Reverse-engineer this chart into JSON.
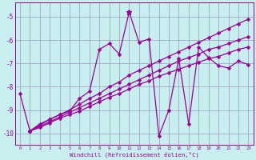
{
  "xlabel": "Windchill (Refroidissement éolien,°C)",
  "bg_color": "#c8eef0",
  "line_color": "#990099",
  "grid_color": "#9999bb",
  "series_main": {
    "x": [
      0,
      1,
      2,
      3,
      4,
      5,
      6,
      7,
      8,
      9,
      10,
      11,
      12,
      13,
      14,
      15,
      16,
      17,
      18,
      19,
      20,
      21,
      22,
      23
    ],
    "y": [
      -8.3,
      -9.9,
      -9.6,
      -9.4,
      -9.2,
      -9.05,
      -8.5,
      -8.2,
      -6.4,
      -6.15,
      -6.6,
      -4.8,
      -6.1,
      -5.95,
      -10.1,
      -9.0,
      -6.8,
      -9.6,
      -6.3,
      -6.75,
      -7.1,
      -7.2,
      -6.9,
      -7.05
    ]
  },
  "series_a": {
    "x": [
      1,
      2,
      3,
      4,
      5,
      6,
      7,
      8,
      9,
      10,
      11,
      12,
      13,
      14,
      15,
      16,
      17,
      18,
      19,
      20,
      21,
      22,
      23
    ],
    "y": [
      -9.9,
      -9.65,
      -9.4,
      -9.2,
      -9.0,
      -8.75,
      -8.5,
      -8.3,
      -8.0,
      -7.8,
      -7.5,
      -7.3,
      -7.1,
      -6.9,
      -6.7,
      -6.5,
      -6.3,
      -6.1,
      -5.9,
      -5.7,
      -5.5,
      -5.3,
      -5.1
    ]
  },
  "series_b": {
    "x": [
      1,
      2,
      3,
      4,
      5,
      6,
      7,
      8,
      9,
      10,
      11,
      12,
      13,
      14,
      15,
      16,
      17,
      18,
      19,
      20,
      21,
      22,
      23
    ],
    "y": [
      -9.9,
      -9.7,
      -9.5,
      -9.3,
      -9.1,
      -8.9,
      -8.7,
      -8.5,
      -8.3,
      -8.1,
      -7.9,
      -7.7,
      -7.5,
      -7.3,
      -7.1,
      -6.9,
      -6.75,
      -6.6,
      -6.4,
      -6.3,
      -6.15,
      -6.0,
      -5.85
    ]
  },
  "series_c": {
    "x": [
      1,
      2,
      3,
      4,
      5,
      6,
      7,
      8,
      9,
      10,
      11,
      12,
      13,
      14,
      15,
      16,
      17,
      18,
      19,
      20,
      21,
      22,
      23
    ],
    "y": [
      -9.9,
      -9.75,
      -9.55,
      -9.35,
      -9.2,
      -9.05,
      -8.85,
      -8.65,
      -8.45,
      -8.3,
      -8.1,
      -7.9,
      -7.75,
      -7.55,
      -7.4,
      -7.25,
      -7.1,
      -6.95,
      -6.8,
      -6.7,
      -6.55,
      -6.4,
      -6.3
    ]
  },
  "xlim": [
    -0.5,
    23.5
  ],
  "ylim": [
    -10.5,
    -4.4
  ],
  "yticks": [
    -10,
    -9,
    -8,
    -7,
    -6,
    -5
  ],
  "xticks": [
    0,
    1,
    2,
    3,
    4,
    5,
    6,
    7,
    8,
    9,
    10,
    11,
    12,
    13,
    14,
    15,
    16,
    17,
    18,
    19,
    20,
    21,
    22,
    23
  ]
}
